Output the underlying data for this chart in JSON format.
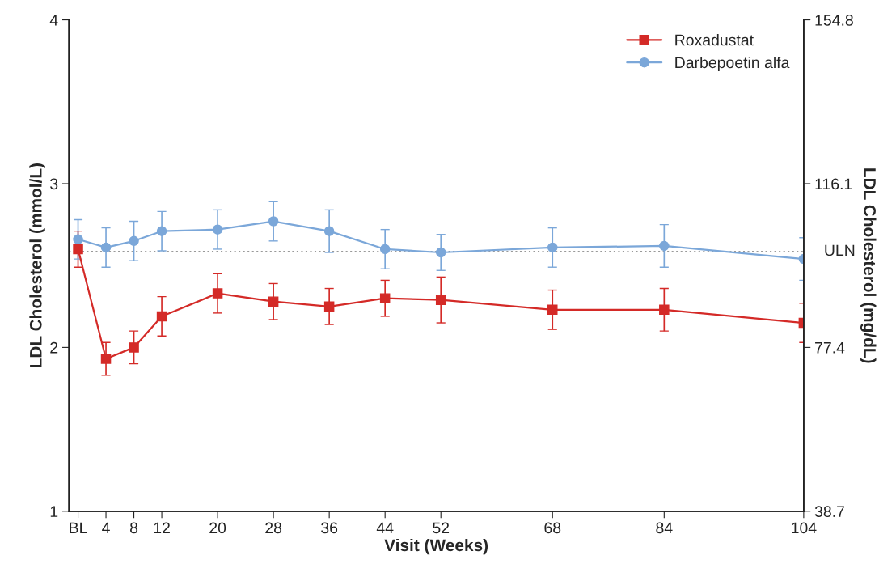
{
  "chart_data": {
    "type": "line",
    "xlabel": "Visit (Weeks)",
    "ylabel": "LDL Cholesterol (mmol/L)",
    "y2label": "LDL Cholesterol (mg/dL)",
    "x": [
      0,
      4,
      8,
      12,
      20,
      28,
      36,
      44,
      52,
      68,
      84,
      104
    ],
    "xlim": [
      -1.3,
      104
    ],
    "xticks": [
      {
        "value": 0,
        "label": "BL"
      },
      4,
      8,
      12,
      20,
      28,
      36,
      44,
      52,
      68,
      84,
      104
    ],
    "ylim": [
      1,
      4
    ],
    "yticks": [
      1,
      2,
      3,
      4
    ],
    "y2lim": [
      38.7,
      154.8
    ],
    "y2ticks": [
      38.7,
      77.4,
      116.1,
      154.8
    ],
    "series": [
      {
        "name": "Roxadustat",
        "color": "#d42a27",
        "marker": "square",
        "values": [
          2.6,
          1.93,
          2.0,
          2.19,
          2.33,
          2.28,
          2.25,
          2.3,
          2.29,
          2.23,
          2.23,
          2.15
        ],
        "errors": [
          0.11,
          0.1,
          0.1,
          0.12,
          0.12,
          0.11,
          0.11,
          0.11,
          0.14,
          0.12,
          0.13,
          0.12
        ]
      },
      {
        "name": "Darbepoetin alfa",
        "color": "#7ba7d9",
        "marker": "circle",
        "values": [
          2.66,
          2.61,
          2.65,
          2.71,
          2.72,
          2.77,
          2.71,
          2.6,
          2.58,
          2.61,
          2.62,
          2.54
        ],
        "errors": [
          0.12,
          0.12,
          0.12,
          0.12,
          0.12,
          0.12,
          0.13,
          0.12,
          0.11,
          0.12,
          0.13,
          0.13
        ]
      }
    ],
    "ref_lines": [
      {
        "axis": "y",
        "value": 2.585,
        "label": "ULN",
        "color": "#999999",
        "line_style": "dotted"
      }
    ],
    "grid": false,
    "legend": "top right",
    "line_style": "solid"
  }
}
